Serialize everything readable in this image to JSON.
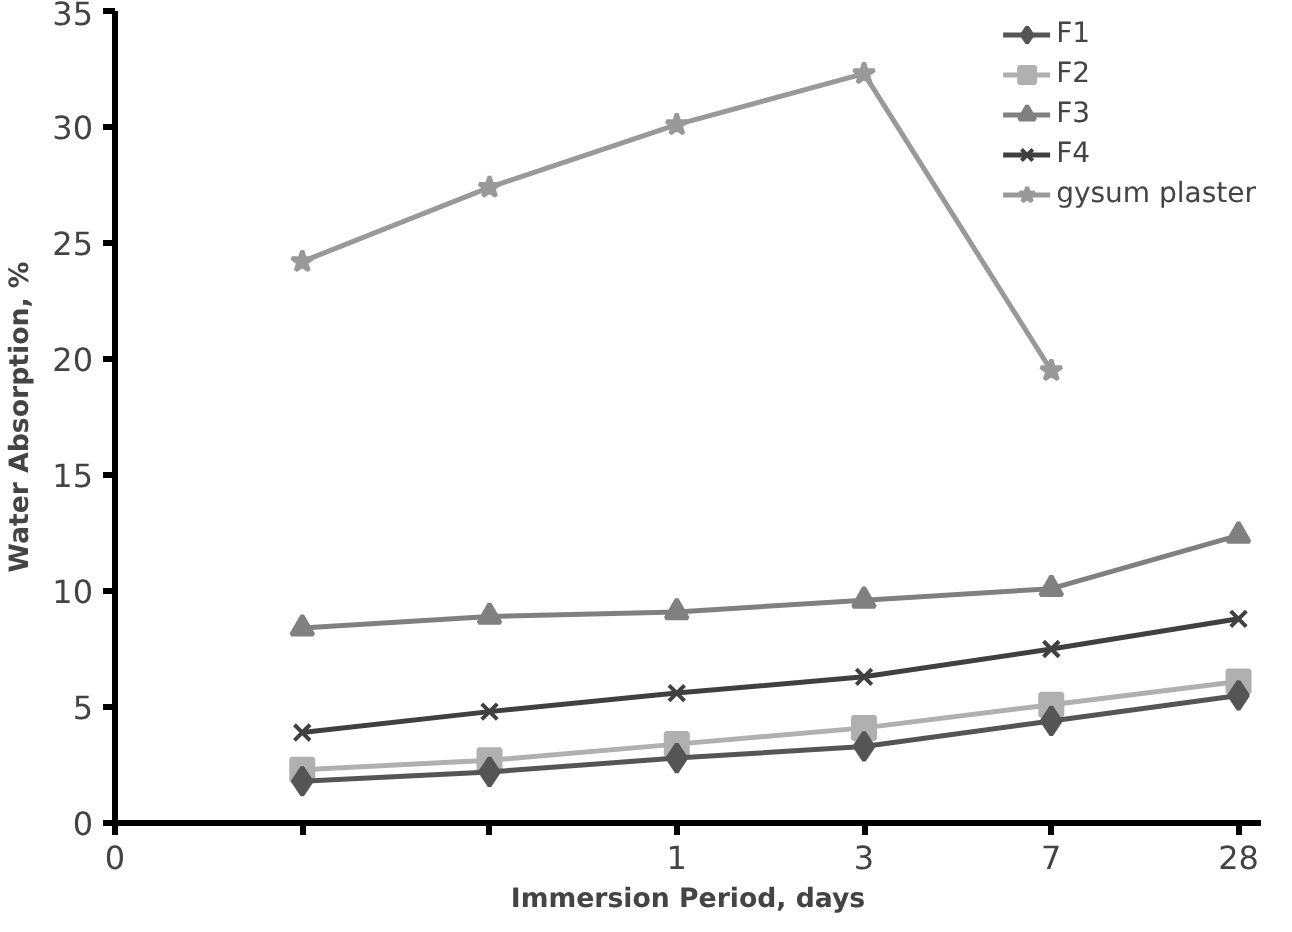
{
  "chart_data": {
    "type": "line",
    "xlabel": "Immersion Period, days",
    "ylabel": "Water Absorption, %",
    "categories": [
      "0",
      null,
      null,
      "1",
      "3",
      "7",
      "28"
    ],
    "series": [
      {
        "name": "F1",
        "color": "#555555",
        "marker": "diamond",
        "values": [
          null,
          1.8,
          2.2,
          2.8,
          3.3,
          4.4,
          5.5
        ]
      },
      {
        "name": "F2",
        "color": "#b0b0b0",
        "marker": "square",
        "values": [
          null,
          2.3,
          2.7,
          3.4,
          4.1,
          5.1,
          6.1
        ]
      },
      {
        "name": "F3",
        "color": "#808080",
        "marker": "triangle",
        "values": [
          null,
          8.4,
          8.9,
          9.1,
          9.6,
          10.1,
          12.4
        ]
      },
      {
        "name": "F4",
        "color": "#404040",
        "marker": "cross",
        "values": [
          null,
          3.9,
          4.8,
          5.6,
          6.3,
          7.5,
          8.8
        ]
      },
      {
        "name": "gysum plaster",
        "color": "#999999",
        "marker": "star",
        "values": [
          null,
          24.2,
          27.4,
          30.1,
          32.3,
          19.5,
          null
        ]
      }
    ],
    "ylim": [
      0,
      35
    ],
    "yticks": [
      0,
      5,
      10,
      15,
      20,
      25,
      30,
      35
    ],
    "grid": false,
    "legend": "top right"
  }
}
